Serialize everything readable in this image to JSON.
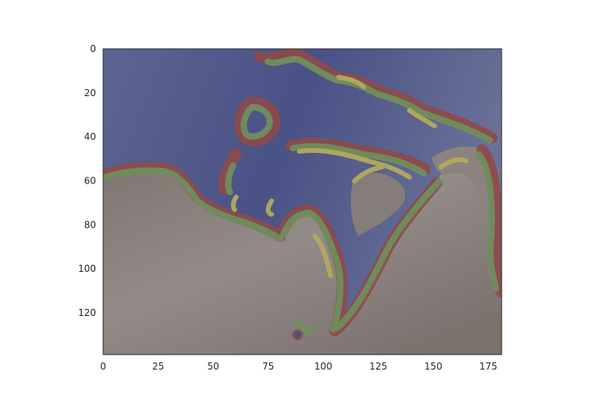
{
  "chart_data": {
    "type": "heatmap",
    "title": "",
    "xlabel": "",
    "ylabel": "",
    "xlim": [
      0,
      181
    ],
    "ylim": [
      139,
      0
    ],
    "x_ticks": [
      0,
      25,
      50,
      75,
      100,
      125,
      150,
      175
    ],
    "y_ticks": [
      0,
      20,
      40,
      60,
      80,
      100,
      120
    ],
    "x_tick_labels": [
      "0",
      "25",
      "50",
      "75",
      "100",
      "125",
      "150",
      "175"
    ],
    "y_tick_labels": [
      "0",
      "20",
      "40",
      "60",
      "80",
      "100",
      "120"
    ],
    "grid": false,
    "description": "",
    "classes": [
      {
        "name": "water",
        "color": "#4f5688"
      },
      {
        "name": "shore-red",
        "color": "#8f4a4a"
      },
      {
        "name": "shore-green",
        "color": "#6f8f5c"
      },
      {
        "name": "shore-yellow",
        "color": "#b3aa5e"
      },
      {
        "name": "land",
        "color": "#8a8280"
      }
    ]
  }
}
